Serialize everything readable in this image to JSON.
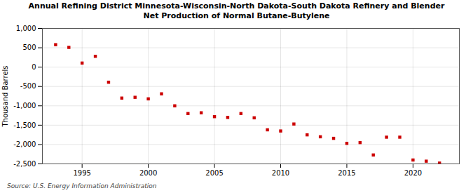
{
  "chart_data": {
    "type": "scatter",
    "title": "Annual Refining District Minnesota-Wisconsin-North Dakota-South Dakota Refinery and Blender",
    "subtitle": "Net Production of Normal Butane-Butylene",
    "ylabel": "Thousand Barrels",
    "caption": "Source: U.S. Energy Information Administration",
    "x": [
      1993,
      1994,
      1995,
      1996,
      1997,
      1998,
      1999,
      2000,
      2001,
      2002,
      2003,
      2004,
      2005,
      2006,
      2007,
      2008,
      2009,
      2010,
      2011,
      2012,
      2013,
      2014,
      2015,
      2016,
      2017,
      2018,
      2019,
      2020,
      2021,
      2022
    ],
    "values": [
      580,
      510,
      105,
      280,
      -390,
      -800,
      -780,
      -820,
      -690,
      -1000,
      -1200,
      -1180,
      -1280,
      -1300,
      -1200,
      -1310,
      -1620,
      -1650,
      -1470,
      -1750,
      -1800,
      -1840,
      -1970,
      -1950,
      -2270,
      -1810,
      -1810,
      -2400,
      -2430,
      -2480
    ],
    "color": "#cc0000",
    "marker": "square",
    "xlim": [
      1992.0,
      2023.5
    ],
    "xticks": [
      1995,
      2000,
      2005,
      2010,
      2015,
      2020
    ],
    "ylim": [
      -2500,
      1000
    ],
    "yticks": [
      {
        "value": -2500,
        "label": "-2,500"
      },
      {
        "value": -2000,
        "label": "-2,000"
      },
      {
        "value": -1500,
        "label": "-1,500"
      },
      {
        "value": -1000,
        "label": "-1,000"
      },
      -500,
      0,
      500,
      {
        "value": 1000,
        "label": "1,000"
      }
    ],
    "grid": true
  }
}
